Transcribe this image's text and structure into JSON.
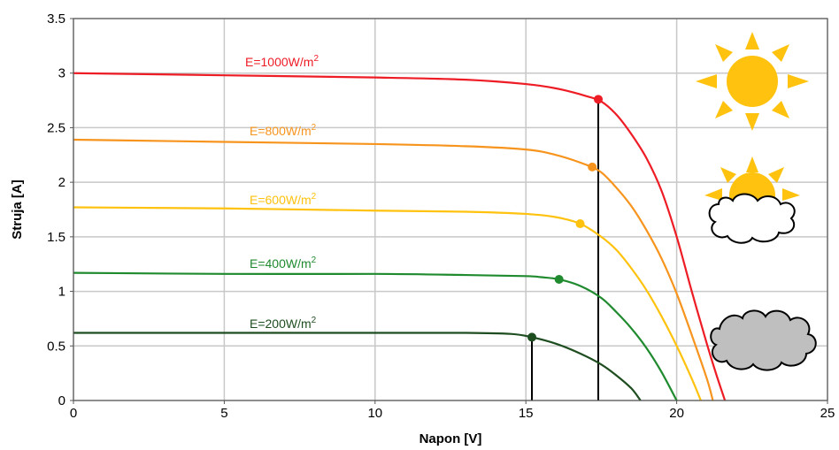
{
  "chart_data": {
    "type": "line",
    "xlabel": "Napon [V]",
    "ylabel": "Struja [A]",
    "xlim": [
      0,
      25
    ],
    "ylim": [
      0,
      3.5
    ],
    "x_ticks": [
      "0",
      "5",
      "10",
      "15",
      "20",
      "25"
    ],
    "y_ticks": [
      "0",
      "0.5",
      "1",
      "1.5",
      "2",
      "2.5",
      "3",
      "3.5"
    ],
    "grid": true,
    "legend": "none",
    "series": [
      {
        "name": "E=1000W/m",
        "unit_exponent": "2",
        "color": "#ee1c25",
        "isc": 3.0,
        "voc": 21.6,
        "points": [
          [
            0,
            3.0
          ],
          [
            5,
            2.98
          ],
          [
            10,
            2.96
          ],
          [
            13,
            2.94
          ],
          [
            15,
            2.9
          ],
          [
            16,
            2.86
          ],
          [
            17,
            2.79
          ],
          [
            17.5,
            2.74
          ],
          [
            18,
            2.62
          ],
          [
            18.5,
            2.44
          ],
          [
            19,
            2.22
          ],
          [
            19.5,
            1.92
          ],
          [
            20,
            1.5
          ],
          [
            20.5,
            1.0
          ],
          [
            21,
            0.52
          ],
          [
            21.3,
            0.25
          ],
          [
            21.6,
            0.0
          ]
        ],
        "mpp": [
          17.4,
          2.76
        ],
        "show_mpp_line": true
      },
      {
        "name": "E=800W/m",
        "unit_exponent": "2",
        "color": "#f7941d",
        "isc": 2.39,
        "voc": 21.2,
        "points": [
          [
            0,
            2.39
          ],
          [
            5,
            2.37
          ],
          [
            10,
            2.35
          ],
          [
            13,
            2.33
          ],
          [
            15,
            2.3
          ],
          [
            16,
            2.25
          ],
          [
            17,
            2.16
          ],
          [
            17.5,
            2.09
          ],
          [
            18,
            1.95
          ],
          [
            18.5,
            1.78
          ],
          [
            19,
            1.56
          ],
          [
            19.5,
            1.3
          ],
          [
            20,
            0.98
          ],
          [
            20.5,
            0.6
          ],
          [
            21,
            0.2
          ],
          [
            21.2,
            0.0
          ]
        ],
        "mpp": [
          17.2,
          2.14
        ],
        "show_mpp_line": false
      },
      {
        "name": "E=600W/m",
        "unit_exponent": "2",
        "color": "#ffc20e",
        "isc": 1.77,
        "voc": 20.8,
        "points": [
          [
            0,
            1.77
          ],
          [
            5,
            1.76
          ],
          [
            10,
            1.74
          ],
          [
            13,
            1.73
          ],
          [
            15,
            1.71
          ],
          [
            16,
            1.68
          ],
          [
            16.8,
            1.62
          ],
          [
            17.5,
            1.5
          ],
          [
            18,
            1.38
          ],
          [
            18.5,
            1.21
          ],
          [
            19,
            1.01
          ],
          [
            19.5,
            0.77
          ],
          [
            20,
            0.5
          ],
          [
            20.5,
            0.2
          ],
          [
            20.8,
            0.0
          ]
        ],
        "mpp": [
          16.8,
          1.62
        ],
        "show_mpp_line": false
      },
      {
        "name": "E=400W/m",
        "unit_exponent": "2",
        "color": "#1f8a2e",
        "isc": 1.17,
        "voc": 20.0,
        "points": [
          [
            0,
            1.17
          ],
          [
            5,
            1.16
          ],
          [
            10,
            1.16
          ],
          [
            13,
            1.15
          ],
          [
            15,
            1.14
          ],
          [
            15.5,
            1.13
          ],
          [
            16.1,
            1.11
          ],
          [
            16.8,
            1.05
          ],
          [
            17.5,
            0.94
          ],
          [
            18,
            0.81
          ],
          [
            18.5,
            0.66
          ],
          [
            19,
            0.48
          ],
          [
            19.5,
            0.26
          ],
          [
            20,
            0.0
          ]
        ],
        "mpp": [
          16.1,
          1.11
        ],
        "show_mpp_line": false
      },
      {
        "name": "E=200W/m",
        "unit_exponent": "2",
        "color": "#1e4d20",
        "isc": 0.62,
        "voc": 18.8,
        "points": [
          [
            0,
            0.62
          ],
          [
            5,
            0.62
          ],
          [
            10,
            0.62
          ],
          [
            13,
            0.62
          ],
          [
            14.5,
            0.61
          ],
          [
            15.2,
            0.58
          ],
          [
            16,
            0.52
          ],
          [
            16.8,
            0.43
          ],
          [
            17.5,
            0.33
          ],
          [
            18,
            0.23
          ],
          [
            18.5,
            0.11
          ],
          [
            18.8,
            0.0
          ]
        ],
        "mpp": [
          15.2,
          0.58
        ],
        "show_mpp_line": true
      }
    ]
  },
  "decor": {
    "icons": [
      {
        "name": "sun-icon"
      },
      {
        "name": "sun-behind-cloud-icon"
      },
      {
        "name": "gray-cloud-icon"
      }
    ]
  }
}
